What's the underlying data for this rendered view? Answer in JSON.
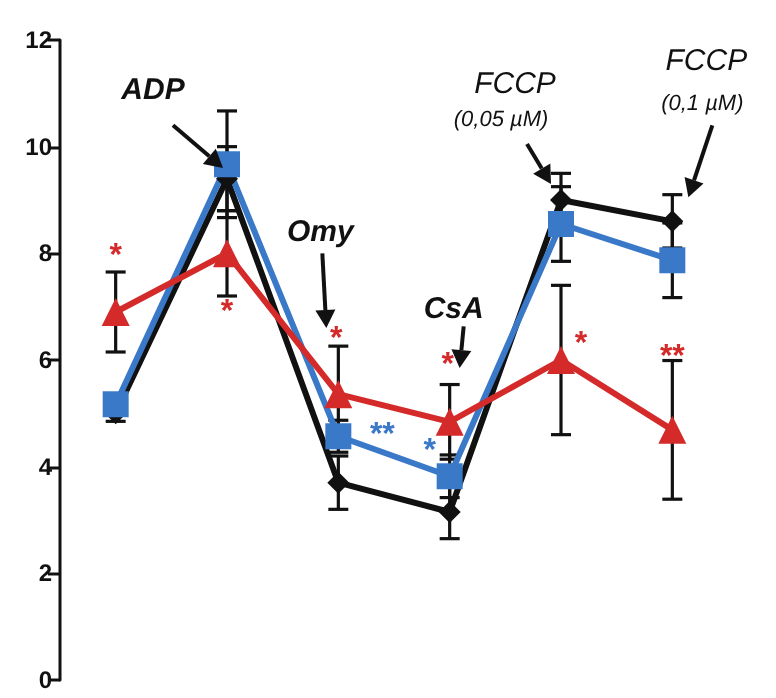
{
  "chart_data": {
    "type": "line",
    "categories": [
      null,
      null,
      null,
      null,
      null,
      null
    ],
    "ylim": [
      0,
      12
    ],
    "yticks": [
      0,
      2,
      4,
      6,
      8,
      10,
      12
    ],
    "series": [
      {
        "color": "#111111",
        "marker": "diamond",
        "values": [
          5.0,
          9.4,
          3.7,
          3.15,
          9.0,
          8.6
        ],
        "errors": [
          0.15,
          0.6,
          0.5,
          0.5,
          0.5,
          0.5
        ]
      },
      {
        "color": "#3a78c8",
        "marker": "square",
        "values": [
          5.17,
          9.67,
          4.57,
          3.82,
          8.55,
          7.87
        ],
        "errors": [
          0.2,
          1.0,
          0.3,
          0.4,
          0.7,
          0.7
        ]
      },
      {
        "color": "#d42a2a",
        "marker": "triangle",
        "values": [
          6.9,
          8.0,
          5.36,
          4.84,
          6.0,
          4.69
        ],
        "errors": [
          0.75,
          0.8,
          0.9,
          0.7,
          1.4,
          1.3
        ]
      }
    ],
    "annotations": [
      "ADP",
      "Omy",
      "CsA",
      "FCCP",
      "(0,05 µM)",
      "FCCP",
      "(0,1 µM)",
      "*",
      "*",
      "*",
      "**",
      "*",
      "*",
      "*",
      "**"
    ]
  }
}
